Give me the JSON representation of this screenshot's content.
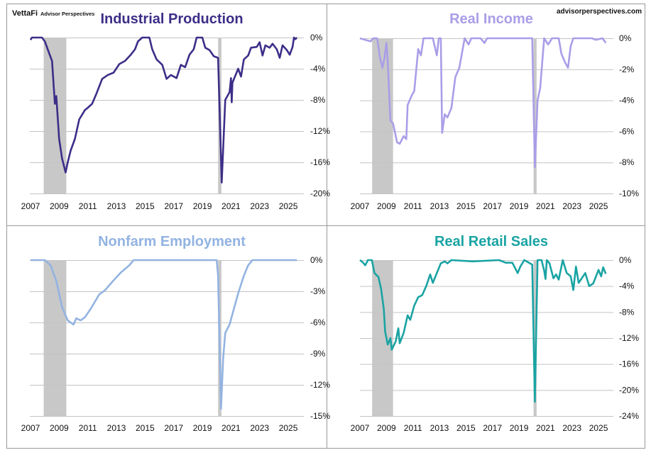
{
  "branding": {
    "logo": "VettaFi",
    "logo_sub": "Advisor Perspectives",
    "website": "advisorperspectives.com"
  },
  "recession_color": "#c8c8c8",
  "chart_data": [
    {
      "type": "line",
      "title": "Industrial Production",
      "color": "#3c2e88",
      "xticks": [
        "2007",
        "2009",
        "2011",
        "2013",
        "2015",
        "2017",
        "2019",
        "2021",
        "2023",
        "2025"
      ],
      "xlim": [
        2007,
        2025.6
      ],
      "ylim": [
        -20,
        0
      ],
      "yticks": [
        "0%",
        "-4%",
        "-8%",
        "-12%",
        "-16%",
        "-20%"
      ],
      "ytick_values": [
        0,
        -4,
        -8,
        -12,
        -16,
        -20
      ],
      "grid": true,
      "recessions": [
        [
          2007.92,
          2009.5
        ],
        [
          2020.1,
          2020.33
        ]
      ],
      "points": [
        [
          2007.0,
          -0.3
        ],
        [
          2007.1,
          0
        ],
        [
          2007.8,
          0
        ],
        [
          2008.0,
          -0.5
        ],
        [
          2008.3,
          -2
        ],
        [
          2008.5,
          -3
        ],
        [
          2008.7,
          -8.5
        ],
        [
          2008.8,
          -7.5
        ],
        [
          2009.0,
          -13
        ],
        [
          2009.2,
          -15.5
        ],
        [
          2009.45,
          -17.3
        ],
        [
          2009.6,
          -16
        ],
        [
          2009.8,
          -14.5
        ],
        [
          2010.1,
          -13
        ],
        [
          2010.4,
          -10.5
        ],
        [
          2010.8,
          -9.3
        ],
        [
          2011.0,
          -9
        ],
        [
          2011.3,
          -8.5
        ],
        [
          2011.6,
          -7.2
        ],
        [
          2012.0,
          -5.3
        ],
        [
          2012.4,
          -4.8
        ],
        [
          2012.8,
          -4.5
        ],
        [
          2013.2,
          -3.4
        ],
        [
          2013.6,
          -3
        ],
        [
          2014.0,
          -2.2
        ],
        [
          2014.3,
          -1.5
        ],
        [
          2014.5,
          -0.5
        ],
        [
          2014.8,
          0
        ],
        [
          2015.3,
          0
        ],
        [
          2015.5,
          -1.5
        ],
        [
          2015.8,
          -2.8
        ],
        [
          2016.2,
          -3.5
        ],
        [
          2016.5,
          -5.3
        ],
        [
          2016.8,
          -4.8
        ],
        [
          2017.2,
          -5.2
        ],
        [
          2017.5,
          -3.5
        ],
        [
          2017.8,
          -3.8
        ],
        [
          2018.1,
          -2.2
        ],
        [
          2018.4,
          -1.5
        ],
        [
          2018.6,
          0
        ],
        [
          2019.0,
          0
        ],
        [
          2019.2,
          -1.3
        ],
        [
          2019.5,
          -1.6
        ],
        [
          2019.8,
          -2.4
        ],
        [
          2020.1,
          -2.6
        ],
        [
          2020.35,
          -18.6
        ],
        [
          2020.6,
          -8
        ],
        [
          2020.9,
          -7
        ],
        [
          2021.0,
          -5.2
        ],
        [
          2021.05,
          -8.3
        ],
        [
          2021.1,
          -5.8
        ],
        [
          2021.5,
          -4
        ],
        [
          2021.7,
          -5
        ],
        [
          2021.9,
          -2.8
        ],
        [
          2022.2,
          -2.3
        ],
        [
          2022.4,
          -1.3
        ],
        [
          2022.8,
          -1.2
        ],
        [
          2023.0,
          -0.6
        ],
        [
          2023.2,
          -2.3
        ],
        [
          2023.4,
          -1
        ],
        [
          2023.7,
          -1.3
        ],
        [
          2023.9,
          -0.8
        ],
        [
          2024.2,
          -1.5
        ],
        [
          2024.4,
          -2.6
        ],
        [
          2024.6,
          -1
        ],
        [
          2024.9,
          -1.6
        ],
        [
          2025.1,
          -2.2
        ],
        [
          2025.3,
          -1.2
        ],
        [
          2025.4,
          0
        ],
        [
          2025.5,
          -0.2
        ],
        [
          2025.6,
          0
        ]
      ]
    },
    {
      "type": "line",
      "title": "Real Income",
      "color": "#a99ee8",
      "xticks": [
        "2007",
        "2009",
        "2011",
        "2013",
        "2015",
        "2017",
        "2019",
        "2021",
        "2023",
        "2025"
      ],
      "xlim": [
        2007,
        2025.55
      ],
      "ylim": [
        -10,
        0
      ],
      "yticks": [
        "0%",
        "-2%",
        "-4%",
        "-6%",
        "-8%",
        "-10%"
      ],
      "ytick_values": [
        0,
        -2,
        -4,
        -6,
        -8,
        -10
      ],
      "grid": true,
      "recessions": [
        [
          2007.92,
          2009.5
        ],
        [
          2020.1,
          2020.33
        ]
      ],
      "points": [
        [
          2007.0,
          0
        ],
        [
          2007.8,
          -0.2
        ],
        [
          2008.0,
          0
        ],
        [
          2008.3,
          0
        ],
        [
          2008.5,
          -1.2
        ],
        [
          2008.7,
          -1.9
        ],
        [
          2008.85,
          -1.3
        ],
        [
          2009.0,
          -0.3
        ],
        [
          2009.1,
          -1.5
        ],
        [
          2009.3,
          -5.3
        ],
        [
          2009.5,
          -5.5
        ],
        [
          2009.8,
          -6.7
        ],
        [
          2010.0,
          -6.8
        ],
        [
          2010.3,
          -6.3
        ],
        [
          2010.5,
          -6.5
        ],
        [
          2010.6,
          -4.3
        ],
        [
          2010.9,
          -3.7
        ],
        [
          2011.1,
          -3.4
        ],
        [
          2011.4,
          -0.7
        ],
        [
          2011.6,
          -1.1
        ],
        [
          2011.8,
          0
        ],
        [
          2012.5,
          0
        ],
        [
          2012.8,
          -1.1
        ],
        [
          2012.95,
          0
        ],
        [
          2013.1,
          0
        ],
        [
          2013.2,
          -6.1
        ],
        [
          2013.4,
          -4.9
        ],
        [
          2013.6,
          -5.1
        ],
        [
          2013.9,
          -4.5
        ],
        [
          2014.2,
          -2.5
        ],
        [
          2014.5,
          -1.9
        ],
        [
          2014.9,
          0
        ],
        [
          2015.2,
          -0.4
        ],
        [
          2015.4,
          0
        ],
        [
          2016.1,
          0
        ],
        [
          2016.4,
          -0.3
        ],
        [
          2016.6,
          0
        ],
        [
          2020.0,
          0
        ],
        [
          2020.2,
          -8.3
        ],
        [
          2020.4,
          -4
        ],
        [
          2020.6,
          -3.2
        ],
        [
          2020.9,
          0
        ],
        [
          2021.2,
          -0.4
        ],
        [
          2021.5,
          0
        ],
        [
          2022.0,
          0
        ],
        [
          2022.2,
          -1
        ],
        [
          2022.5,
          -1.6
        ],
        [
          2022.7,
          -1.9
        ],
        [
          2022.9,
          -0.5
        ],
        [
          2023.1,
          0
        ],
        [
          2024.5,
          0
        ],
        [
          2024.8,
          -0.1
        ],
        [
          2025.3,
          0
        ],
        [
          2025.55,
          -0.3
        ]
      ]
    },
    {
      "type": "line",
      "title": "Nonfarm Employment",
      "color": "#93b3e1",
      "xticks": [
        "2007",
        "2009",
        "2011",
        "2013",
        "2015",
        "2017",
        "2019",
        "2021",
        "2023",
        "2025"
      ],
      "xlim": [
        2007,
        2025.6
      ],
      "ylim": [
        -15,
        0
      ],
      "yticks": [
        "0%",
        "-3%",
        "-6%",
        "-9%",
        "-12%",
        "-15%"
      ],
      "ytick_values": [
        0,
        -3,
        -6,
        -9,
        -12,
        -15
      ],
      "grid": true,
      "recessions": [
        [
          2007.92,
          2009.5
        ],
        [
          2020.1,
          2020.33
        ]
      ],
      "points": [
        [
          2007.0,
          0
        ],
        [
          2008.0,
          0
        ],
        [
          2008.4,
          -0.5
        ],
        [
          2008.8,
          -2
        ],
        [
          2009.2,
          -4.5
        ],
        [
          2009.6,
          -5.8
        ],
        [
          2010.0,
          -6.2
        ],
        [
          2010.2,
          -5.6
        ],
        [
          2010.5,
          -5.8
        ],
        [
          2010.8,
          -5.5
        ],
        [
          2011.2,
          -4.7
        ],
        [
          2011.8,
          -3.3
        ],
        [
          2012.2,
          -2.9
        ],
        [
          2012.7,
          -2.1
        ],
        [
          2013.3,
          -1.2
        ],
        [
          2013.9,
          -0.5
        ],
        [
          2014.2,
          0
        ],
        [
          2020.0,
          0
        ],
        [
          2020.1,
          -1.5
        ],
        [
          2020.3,
          -14.3
        ],
        [
          2020.45,
          -9.5
        ],
        [
          2020.6,
          -7
        ],
        [
          2020.9,
          -6.2
        ],
        [
          2021.1,
          -5.2
        ],
        [
          2021.5,
          -3.2
        ],
        [
          2021.9,
          -1.5
        ],
        [
          2022.2,
          -0.5
        ],
        [
          2022.5,
          0
        ],
        [
          2025.6,
          0
        ]
      ]
    },
    {
      "type": "line",
      "title": "Real Retail Sales",
      "color": "#1aa3a3",
      "xticks": [
        "2007",
        "2009",
        "2011",
        "2013",
        "2015",
        "2017",
        "2019",
        "2021",
        "2023",
        "2025"
      ],
      "xlim": [
        2007,
        2025.55
      ],
      "ylim": [
        -24,
        0
      ],
      "yticks": [
        "0%",
        "-4%",
        "-8%",
        "-12%",
        "-16%",
        "-20%",
        "-24%"
      ],
      "ytick_values": [
        0,
        -4,
        -8,
        -12,
        -16,
        -20,
        -24
      ],
      "grid": true,
      "recessions": [
        [
          2007.92,
          2009.5
        ],
        [
          2020.1,
          2020.33
        ]
      ],
      "points": [
        [
          2007.0,
          0
        ],
        [
          2007.2,
          -0.3
        ],
        [
          2007.4,
          -0.8
        ],
        [
          2007.6,
          0
        ],
        [
          2007.9,
          0
        ],
        [
          2008.1,
          -2
        ],
        [
          2008.4,
          -2.6
        ],
        [
          2008.6,
          -4.5
        ],
        [
          2008.8,
          -7.5
        ],
        [
          2008.9,
          -11
        ],
        [
          2009.1,
          -13
        ],
        [
          2009.3,
          -12
        ],
        [
          2009.4,
          -13.8
        ],
        [
          2009.7,
          -12.5
        ],
        [
          2009.9,
          -10.5
        ],
        [
          2010.0,
          -12.8
        ],
        [
          2010.3,
          -11.2
        ],
        [
          2010.6,
          -8.5
        ],
        [
          2010.8,
          -9.2
        ],
        [
          2011.1,
          -7
        ],
        [
          2011.4,
          -5.7
        ],
        [
          2011.7,
          -5.4
        ],
        [
          2012.0,
          -4
        ],
        [
          2012.3,
          -2.2
        ],
        [
          2012.5,
          -3.5
        ],
        [
          2012.8,
          -2.0
        ],
        [
          2013.1,
          -0.5
        ],
        [
          2013.4,
          -0.2
        ],
        [
          2013.6,
          -0.5
        ],
        [
          2013.9,
          0
        ],
        [
          2015.5,
          -0.2
        ],
        [
          2017.5,
          0
        ],
        [
          2018.0,
          -0.4
        ],
        [
          2018.5,
          -0.4
        ],
        [
          2018.9,
          -2.0
        ],
        [
          2019.1,
          -1.0
        ],
        [
          2019.4,
          0
        ],
        [
          2020.0,
          -0.7
        ],
        [
          2020.2,
          -21.8
        ],
        [
          2020.4,
          0
        ],
        [
          2020.7,
          0
        ],
        [
          2020.9,
          -1.6
        ],
        [
          2021.0,
          -2.9
        ],
        [
          2021.1,
          0
        ],
        [
          2021.3,
          -0.5
        ],
        [
          2021.6,
          -2.8
        ],
        [
          2021.8,
          -2.2
        ],
        [
          2022.0,
          -3.0
        ],
        [
          2022.3,
          0
        ],
        [
          2022.6,
          -2.0
        ],
        [
          2022.9,
          -2.5
        ],
        [
          2023.1,
          -4.6
        ],
        [
          2023.3,
          -1
        ],
        [
          2023.5,
          -3.5
        ],
        [
          2024.0,
          -2.0
        ],
        [
          2024.3,
          -4.0
        ],
        [
          2024.6,
          -3.6
        ],
        [
          2025.0,
          -1.5
        ],
        [
          2025.2,
          -2.5
        ],
        [
          2025.35,
          -1.1
        ],
        [
          2025.55,
          -2.1
        ]
      ]
    }
  ]
}
